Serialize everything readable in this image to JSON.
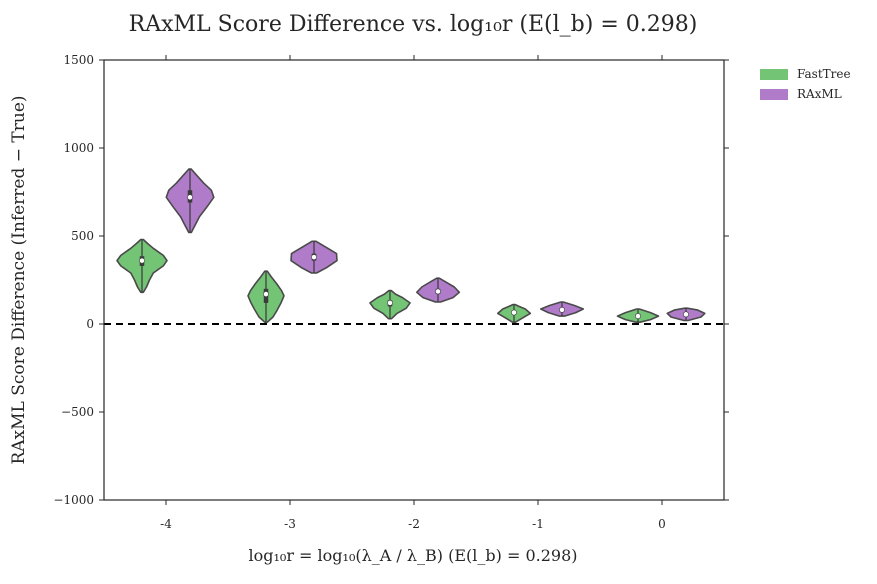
{
  "chart_data": {
    "type": "violin",
    "title": "RAxML Score Difference vs. log₁₀r (E(l_b) = 0.298)",
    "xlabel": "log₁₀r = log₁₀(λ_A / λ_B) (E(l_b) = 0.298)",
    "ylabel": "RAxML Score Difference (Inferred − True)",
    "categories": [
      "-4",
      "-3",
      "-2",
      "-1",
      "0"
    ],
    "ylim": [
      -1000,
      1500
    ],
    "yticks": [
      1500,
      1000,
      500,
      0,
      -500,
      -1000
    ],
    "ytick_labels": [
      "1500",
      "1000",
      "500",
      "0",
      "−500",
      "−1000"
    ],
    "reference_line": {
      "y": 0,
      "style": "dashed",
      "color": "#000000"
    },
    "legend_position": "outside-top-right",
    "grid": false,
    "series": [
      {
        "name": "FastTree",
        "color": "#74c476",
        "violins": [
          {
            "category": "-4",
            "min": 180,
            "max": 480,
            "median": 360,
            "q1": 330,
            "q3": 385,
            "profile": [
              [
                180,
                0.05
              ],
              [
                210,
                0.18
              ],
              [
                250,
                0.3
              ],
              [
                290,
                0.45
              ],
              [
                330,
                0.85
              ],
              [
                360,
                1.0
              ],
              [
                390,
                0.85
              ],
              [
                430,
                0.45
              ],
              [
                460,
                0.2
              ],
              [
                480,
                0.05
              ]
            ]
          },
          {
            "category": "-3",
            "min": 10,
            "max": 300,
            "median": 170,
            "q1": 120,
            "q3": 200,
            "profile": [
              [
                10,
                0.05
              ],
              [
                40,
                0.28
              ],
              [
                80,
                0.45
              ],
              [
                120,
                0.6
              ],
              [
                160,
                0.72
              ],
              [
                190,
                0.62
              ],
              [
                230,
                0.42
              ],
              [
                270,
                0.2
              ],
              [
                300,
                0.05
              ]
            ]
          },
          {
            "category": "-2",
            "min": 30,
            "max": 190,
            "median": 120,
            "q1": 100,
            "q3": 135,
            "profile": [
              [
                30,
                0.06
              ],
              [
                60,
                0.28
              ],
              [
                90,
                0.65
              ],
              [
                120,
                0.8
              ],
              [
                150,
                0.5
              ],
              [
                170,
                0.22
              ],
              [
                190,
                0.05
              ]
            ]
          },
          {
            "category": "-1",
            "min": 10,
            "max": 110,
            "median": 65,
            "q1": 55,
            "q3": 75,
            "profile": [
              [
                10,
                0.06
              ],
              [
                35,
                0.35
              ],
              [
                60,
                0.65
              ],
              [
                85,
                0.45
              ],
              [
                100,
                0.2
              ],
              [
                110,
                0.05
              ]
            ]
          },
          {
            "category": "0",
            "min": 10,
            "max": 85,
            "median": 45,
            "q1": 35,
            "q3": 55,
            "profile": [
              [
                10,
                0.08
              ],
              [
                25,
                0.5
              ],
              [
                45,
                0.82
              ],
              [
                65,
                0.5
              ],
              [
                85,
                0.05
              ]
            ]
          }
        ]
      },
      {
        "name": "RAxML",
        "color": "#b07cc9",
        "violins": [
          {
            "category": "-4",
            "min": 520,
            "max": 880,
            "median": 720,
            "q1": 690,
            "q3": 760,
            "profile": [
              [
                520,
                0.05
              ],
              [
                560,
                0.2
              ],
              [
                610,
                0.38
              ],
              [
                660,
                0.65
              ],
              [
                720,
                0.95
              ],
              [
                760,
                0.85
              ],
              [
                800,
                0.55
              ],
              [
                840,
                0.3
              ],
              [
                880,
                0.05
              ]
            ]
          },
          {
            "category": "-3",
            "min": 290,
            "max": 470,
            "median": 380,
            "q1": 360,
            "q3": 400,
            "profile": [
              [
                290,
                0.1
              ],
              [
                320,
                0.5
              ],
              [
                360,
                0.92
              ],
              [
                400,
                0.9
              ],
              [
                430,
                0.55
              ],
              [
                470,
                0.08
              ]
            ]
          },
          {
            "category": "-2",
            "min": 125,
            "max": 260,
            "median": 185,
            "q1": 170,
            "q3": 200,
            "profile": [
              [
                125,
                0.1
              ],
              [
                150,
                0.6
              ],
              [
                180,
                0.85
              ],
              [
                210,
                0.65
              ],
              [
                240,
                0.3
              ],
              [
                260,
                0.05
              ]
            ]
          },
          {
            "category": "-1",
            "min": 45,
            "max": 125,
            "median": 80,
            "q1": 70,
            "q3": 90,
            "profile": [
              [
                45,
                0.1
              ],
              [
                65,
                0.55
              ],
              [
                85,
                0.85
              ],
              [
                105,
                0.5
              ],
              [
                125,
                0.05
              ]
            ]
          },
          {
            "category": "0",
            "min": 20,
            "max": 90,
            "median": 55,
            "q1": 45,
            "q3": 65,
            "profile": [
              [
                20,
                0.08
              ],
              [
                40,
                0.6
              ],
              [
                60,
                0.75
              ],
              [
                80,
                0.45
              ],
              [
                90,
                0.05
              ]
            ]
          }
        ]
      }
    ]
  }
}
